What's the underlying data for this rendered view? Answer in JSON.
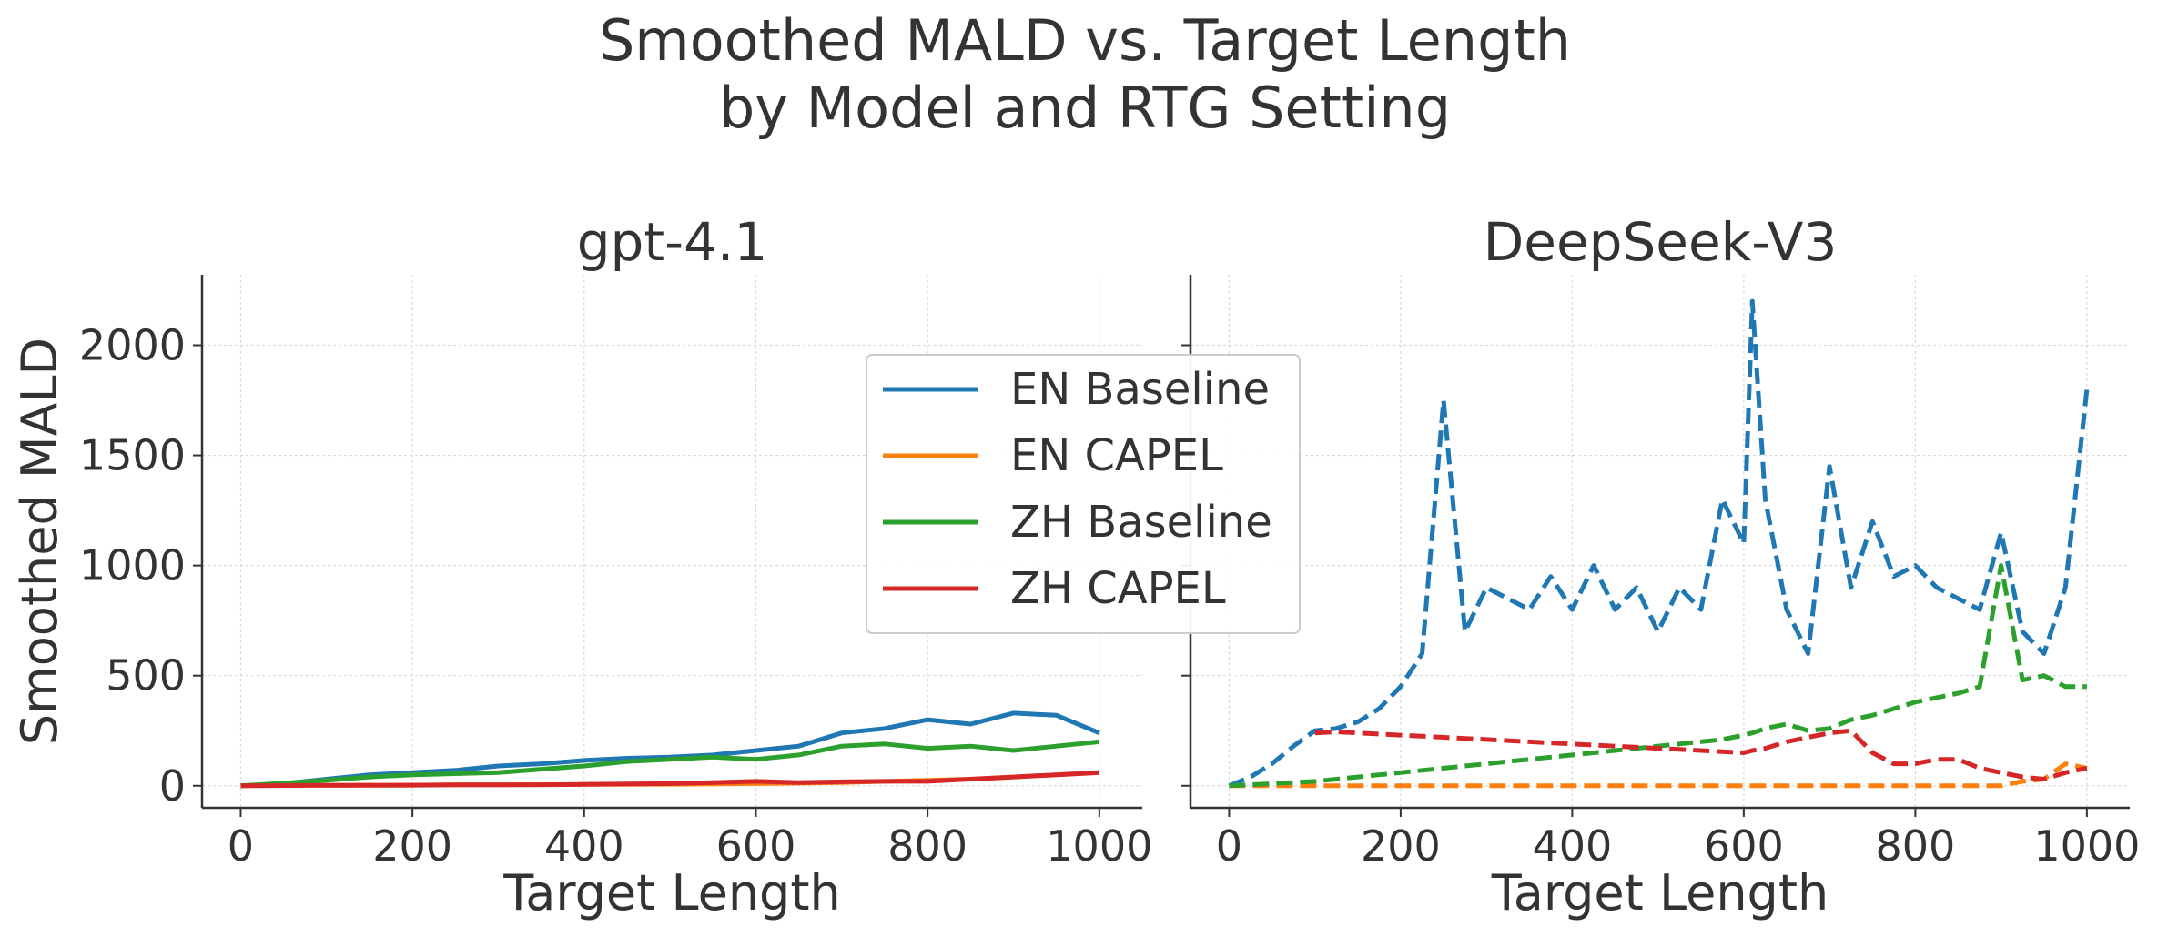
{
  "figure": {
    "title_lines": [
      "Smoothed MALD vs. Target Length",
      "by Model and RTG Setting"
    ]
  },
  "legend": {
    "placement": "center, overlapping both panels",
    "items": [
      {
        "label": "EN Baseline",
        "color": "#1f77b4"
      },
      {
        "label": "EN CAPEL",
        "color": "#ff7f0e"
      },
      {
        "label": "ZH Baseline",
        "color": "#2ca02c"
      },
      {
        "label": "ZH CAPEL",
        "color": "#d62728"
      }
    ]
  },
  "chart_data": [
    {
      "type": "line",
      "title": "gpt-4.1",
      "xlabel": "Target Length",
      "ylabel": "Smoothed MALD",
      "xlim": [
        -45,
        1050
      ],
      "ylim": [
        -100,
        2320
      ],
      "xticks": [
        0,
        200,
        400,
        600,
        800,
        1000
      ],
      "yticks": [
        0,
        500,
        1000,
        1500,
        2000
      ],
      "grid": true,
      "line_style": "solid",
      "x": [
        0,
        50,
        100,
        150,
        200,
        250,
        300,
        350,
        400,
        450,
        500,
        550,
        600,
        650,
        700,
        750,
        800,
        850,
        900,
        950,
        1000
      ],
      "series": [
        {
          "name": "EN Baseline",
          "color": "#1f77b4",
          "values": [
            0,
            10,
            30,
            50,
            60,
            70,
            90,
            100,
            115,
            125,
            130,
            140,
            160,
            180,
            240,
            260,
            300,
            280,
            330,
            320,
            240
          ]
        },
        {
          "name": "EN CAPEL",
          "color": "#ff7f0e",
          "values": [
            0,
            1,
            2,
            3,
            3,
            4,
            4,
            5,
            6,
            6,
            7,
            8,
            10,
            12,
            15,
            20,
            25,
            30,
            40,
            50,
            60
          ]
        },
        {
          "name": "ZH Baseline",
          "color": "#2ca02c",
          "values": [
            0,
            12,
            25,
            40,
            50,
            55,
            60,
            75,
            90,
            110,
            120,
            130,
            120,
            140,
            180,
            190,
            170,
            180,
            160,
            180,
            200
          ]
        },
        {
          "name": "ZH CAPEL",
          "color": "#d62728",
          "values": [
            0,
            1,
            2,
            2,
            3,
            4,
            4,
            5,
            6,
            8,
            10,
            15,
            20,
            15,
            18,
            20,
            20,
            30,
            40,
            50,
            60
          ]
        }
      ]
    },
    {
      "type": "line",
      "title": "DeepSeek-V3",
      "xlabel": "Target Length",
      "ylabel": "",
      "xlim": [
        -45,
        1050
      ],
      "ylim": [
        -100,
        2320
      ],
      "xticks": [
        0,
        200,
        400,
        600,
        800,
        1000
      ],
      "yticks": [
        0,
        500,
        1000,
        1500,
        2000
      ],
      "grid": true,
      "line_style": "dashed",
      "x": [
        0,
        25,
        50,
        75,
        100,
        125,
        150,
        175,
        200,
        225,
        250,
        275,
        300,
        325,
        350,
        375,
        400,
        425,
        450,
        475,
        500,
        525,
        550,
        575,
        600,
        610,
        625,
        650,
        675,
        700,
        725,
        750,
        775,
        800,
        825,
        850,
        875,
        900,
        925,
        950,
        975,
        1000
      ],
      "series": [
        {
          "name": "EN Baseline",
          "color": "#1f77b4",
          "values": [
            0,
            40,
            100,
            180,
            250,
            260,
            290,
            350,
            450,
            600,
            1750,
            700,
            900,
            850,
            800,
            950,
            800,
            1000,
            800,
            900,
            700,
            900,
            800,
            1300,
            1100,
            2200,
            1300,
            800,
            600,
            1450,
            900,
            1200,
            950,
            1000,
            900,
            850,
            800,
            1150,
            700,
            600,
            900,
            1800
          ]
        },
        {
          "name": "EN CAPEL",
          "color": "#ff7f0e",
          "values": [
            0,
            0,
            0,
            0,
            0,
            0,
            0,
            0,
            0,
            0,
            0,
            0,
            0,
            0,
            0,
            0,
            0,
            0,
            0,
            0,
            0,
            0,
            0,
            0,
            0,
            0,
            0,
            0,
            0,
            0,
            0,
            0,
            0,
            0,
            0,
            0,
            0,
            0,
            20,
            30,
            100,
            80
          ]
        },
        {
          "name": "ZH Baseline",
          "color": "#2ca02c",
          "values": [
            0,
            5,
            10,
            15,
            20,
            30,
            40,
            50,
            60,
            70,
            80,
            90,
            100,
            110,
            120,
            130,
            140,
            150,
            160,
            170,
            180,
            190,
            200,
            210,
            230,
            240,
            260,
            280,
            250,
            260,
            300,
            320,
            350,
            380,
            400,
            420,
            450,
            1000,
            480,
            500,
            450,
            450
          ]
        },
        {
          "name": "ZH CAPEL",
          "color": "#d62728",
          "values": [
            null,
            null,
            null,
            null,
            240,
            245,
            240,
            235,
            230,
            225,
            220,
            215,
            210,
            205,
            200,
            195,
            190,
            185,
            180,
            175,
            170,
            165,
            160,
            155,
            150,
            160,
            170,
            200,
            220,
            240,
            250,
            150,
            100,
            100,
            120,
            120,
            80,
            60,
            40,
            30,
            60,
            80
          ]
        }
      ]
    }
  ]
}
